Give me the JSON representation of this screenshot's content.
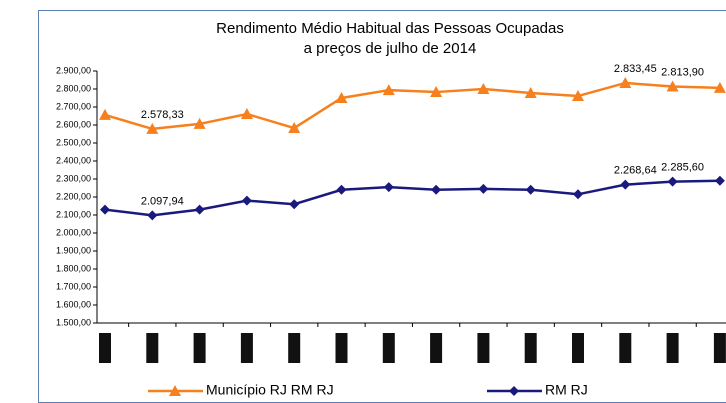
{
  "chart_data": {
    "type": "line",
    "title": "Rendimento Médio Habitual das Pessoas Ocupadas",
    "subtitle": "a preços de julho de 2014",
    "categories": [
      null,
      null,
      null,
      null,
      null,
      null,
      null,
      null,
      null,
      null,
      null,
      null,
      null,
      null
    ],
    "series": [
      {
        "name": "Município RJ RM RJ",
        "color": "#f7801e",
        "marker": "triangle",
        "values": [
          2656,
          2578.33,
          2606,
          2661,
          2583,
          2750,
          2794,
          2783,
          2800,
          2778,
          2761,
          2833.45,
          2813.9,
          2806
        ],
        "value_labels": [
          null,
          "2.578,33",
          null,
          null,
          null,
          null,
          null,
          null,
          null,
          null,
          null,
          "2.833,45",
          "2.813,90",
          null
        ]
      },
      {
        "name": "RM RJ",
        "color": "#1a1a7e",
        "marker": "diamond",
        "values": [
          2130,
          2097.94,
          2130,
          2180,
          2160,
          2240,
          2255,
          2240,
          2245,
          2240,
          2215,
          2268.64,
          2285.6,
          2290
        ],
        "value_labels": [
          null,
          "2.097,94",
          null,
          null,
          null,
          null,
          null,
          null,
          null,
          null,
          null,
          "2.268,64",
          "2.285,60",
          null
        ]
      }
    ],
    "ylim": [
      1500,
      2900
    ],
    "yticks": [
      {
        "value": 1500,
        "label": "1.500,00"
      },
      {
        "value": 1600,
        "label": "1.600,00"
      },
      {
        "value": 1700,
        "label": "1.700,00"
      },
      {
        "value": 1800,
        "label": "1.800,00"
      },
      {
        "value": 1900,
        "label": "1.900,00"
      },
      {
        "value": 2000,
        "label": "2.000,00"
      },
      {
        "value": 2100,
        "label": "2.100,00"
      },
      {
        "value": 2200,
        "label": "2.200,00"
      },
      {
        "value": 2300,
        "label": "2.300,00"
      },
      {
        "value": 2400,
        "label": "2.400,00"
      },
      {
        "value": 2500,
        "label": "2.500,00"
      },
      {
        "value": 2600,
        "label": "2.600,00"
      },
      {
        "value": 2700,
        "label": "2.700,00"
      },
      {
        "value": 2800,
        "label": "2.800,00"
      },
      {
        "value": 2900,
        "label": "2.900,00"
      }
    ],
    "legend": "bottom"
  }
}
